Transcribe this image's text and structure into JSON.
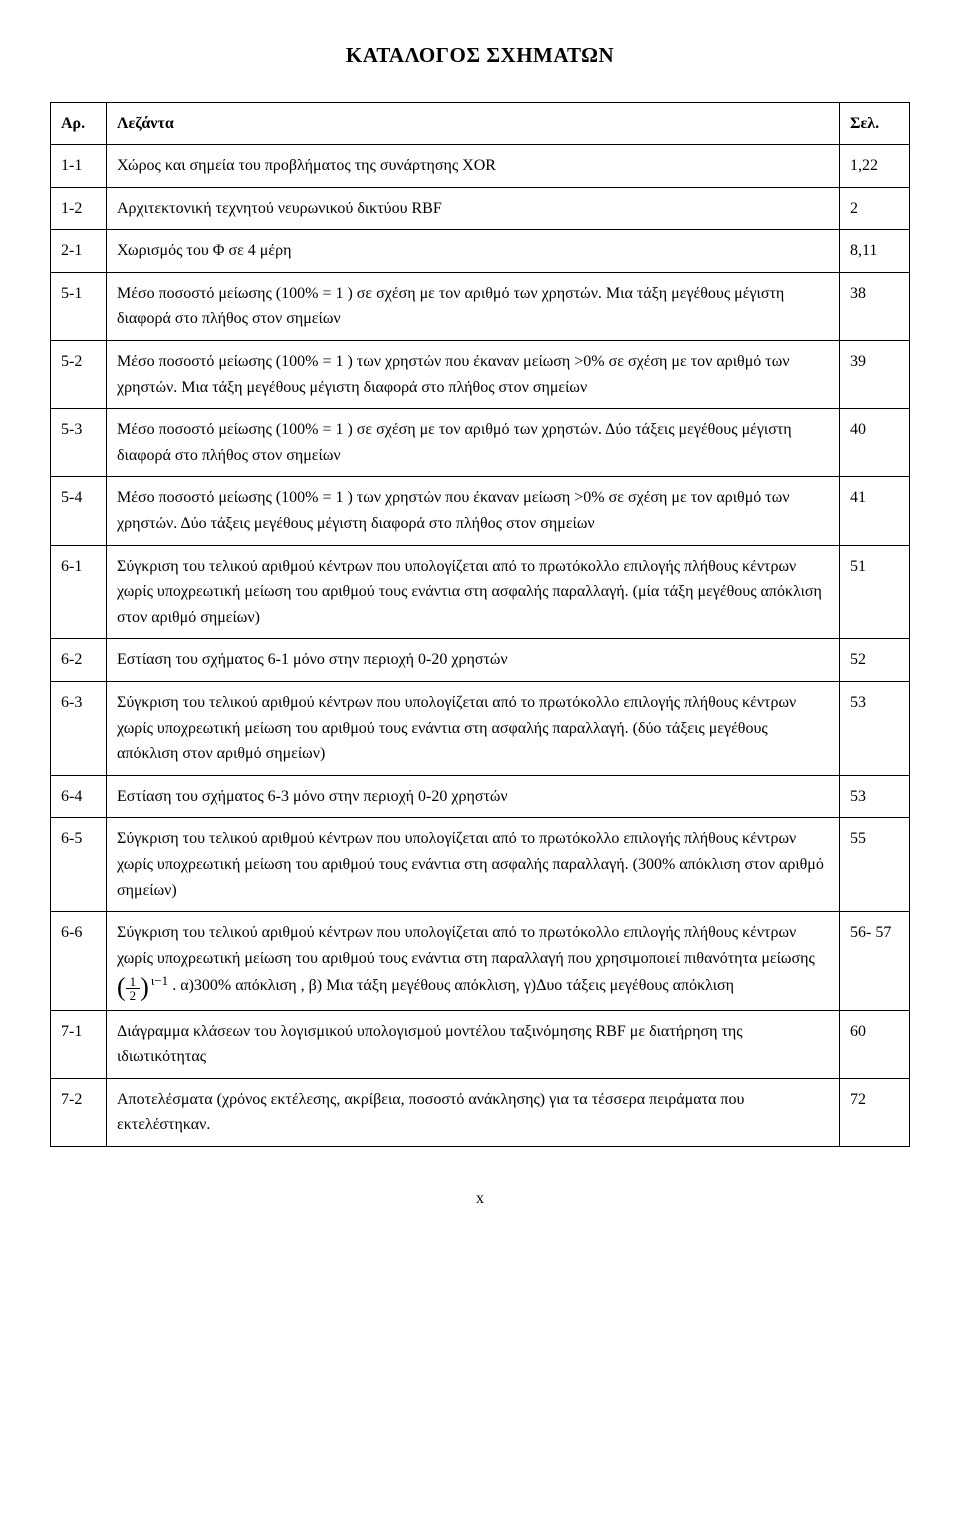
{
  "title": "ΚΑΤΑΛΟΓΟΣ ΣΧΗΜΑΤΩΝ",
  "headers": {
    "num": "Αρ.",
    "desc": "Λεζάντα",
    "page": "Σελ."
  },
  "rows": [
    {
      "num": "1-1",
      "desc": "Χώρος και σημεία του προβλήματος της συνάρτησης XOR",
      "page": "1,22"
    },
    {
      "num": "1-2",
      "desc": "Αρχιτεκτονική τεχνητού νευρωνικού δικτύου RBF",
      "page": "2"
    },
    {
      "num": "2-1",
      "desc": "Χωρισμός του Φ σε 4 μέρη",
      "page": "8,11"
    },
    {
      "num": "5-1",
      "desc": "Μέσο ποσοστό μείωσης (100% = 1 ) σε σχέση με τον αριθμό των χρηστών. Μια τάξη μεγέθους μέγιστη διαφορά στο πλήθος στον σημείων",
      "page": "38"
    },
    {
      "num": "5-2",
      "desc": "Μέσο ποσοστό μείωσης (100% = 1 ) των χρηστών που έκαναν μείωση >0% σε σχέση με τον αριθμό των χρηστών. Μια τάξη μεγέθους μέγιστη διαφορά στο πλήθος στον σημείων",
      "page": "39"
    },
    {
      "num": "5-3",
      "desc": "Μέσο ποσοστό μείωσης (100% = 1 ) σε σχέση με τον αριθμό των χρηστών. Δύο τάξεις μεγέθους μέγιστη διαφορά στο πλήθος στον σημείων",
      "page": "40"
    },
    {
      "num": "5-4",
      "desc": "Μέσο ποσοστό μείωσης (100% = 1 ) των χρηστών που έκαναν μείωση >0% σε σχέση με τον αριθμό των χρηστών. Δύο τάξεις μεγέθους μέγιστη διαφορά στο πλήθος στον σημείων",
      "page": "41"
    },
    {
      "num": "6-1",
      "desc": "Σύγκριση του τελικού αριθμού κέντρων που υπολογίζεται από το πρωτόκολλο επιλογής πλήθους κέντρων χωρίς υποχρεωτική μείωση του αριθμού τους ενάντια στη ασφαλής παραλλαγή. (μία τάξη μεγέθους απόκλιση στον αριθμό σημείων)",
      "page": "51"
    },
    {
      "num": "6-2",
      "desc": "Εστίαση του σχήματος 6-1 μόνο στην περιοχή 0-20 χρηστών",
      "page": "52"
    },
    {
      "num": "6-3",
      "desc": "Σύγκριση του τελικού αριθμού κέντρων που υπολογίζεται από το πρωτόκολλο επιλογής πλήθους κέντρων χωρίς υποχρεωτική μείωση του αριθμού τους ενάντια στη ασφαλής παραλλαγή. (δύο τάξεις μεγέθους απόκλιση στον αριθμό σημείων)",
      "page": "53"
    },
    {
      "num": "6-4",
      "desc": "Εστίαση του σχήματος 6-3 μόνο στην περιοχή 0-20 χρηστών",
      "page": "53"
    },
    {
      "num": "6-5",
      "desc": "Σύγκριση του τελικού αριθμού κέντρων που υπολογίζεται από το πρωτόκολλο επιλογής πλήθους κέντρων χωρίς υποχρεωτική μείωση του αριθμού τους ενάντια στη ασφαλής παραλλαγή. (300% απόκλιση στον αριθμό σημείων)",
      "page": "55"
    },
    {
      "num": "6-6",
      "desc_parts": {
        "before": "Σύγκριση του τελικού αριθμού κέντρων που υπολογίζεται από το πρωτόκολλο επιλογής πλήθους κέντρων χωρίς υποχρεωτική μείωση του αριθμού τους ενάντια στη παραλλαγή που χρησιμοποιεί πιθανότητα μείωσης ",
        "frac_num": "1",
        "frac_den": "2",
        "exponent": "ι−1",
        "after": " . α)300% απόκλιση ,  β) Μια τάξη μεγέθους απόκλιση, γ)Δυο τάξεις μεγέθους απόκλιση"
      },
      "page": "56- 57"
    },
    {
      "num": "7-1",
      "desc": "Διάγραμμα κλάσεων του λογισμικού υπολογισμού μοντέλου ταξινόμησης RBF με διατήρηση της ιδιωτικότητας",
      "page": "60"
    },
    {
      "num": "7-2",
      "desc": "Αποτελέσματα (χρόνος εκτέλεσης, ακρίβεια, ποσοστό ανάκλησης) για τα τέσσερα πειράματα που εκτελέστηκαν.",
      "page": "72"
    }
  ],
  "page_number": "x"
}
